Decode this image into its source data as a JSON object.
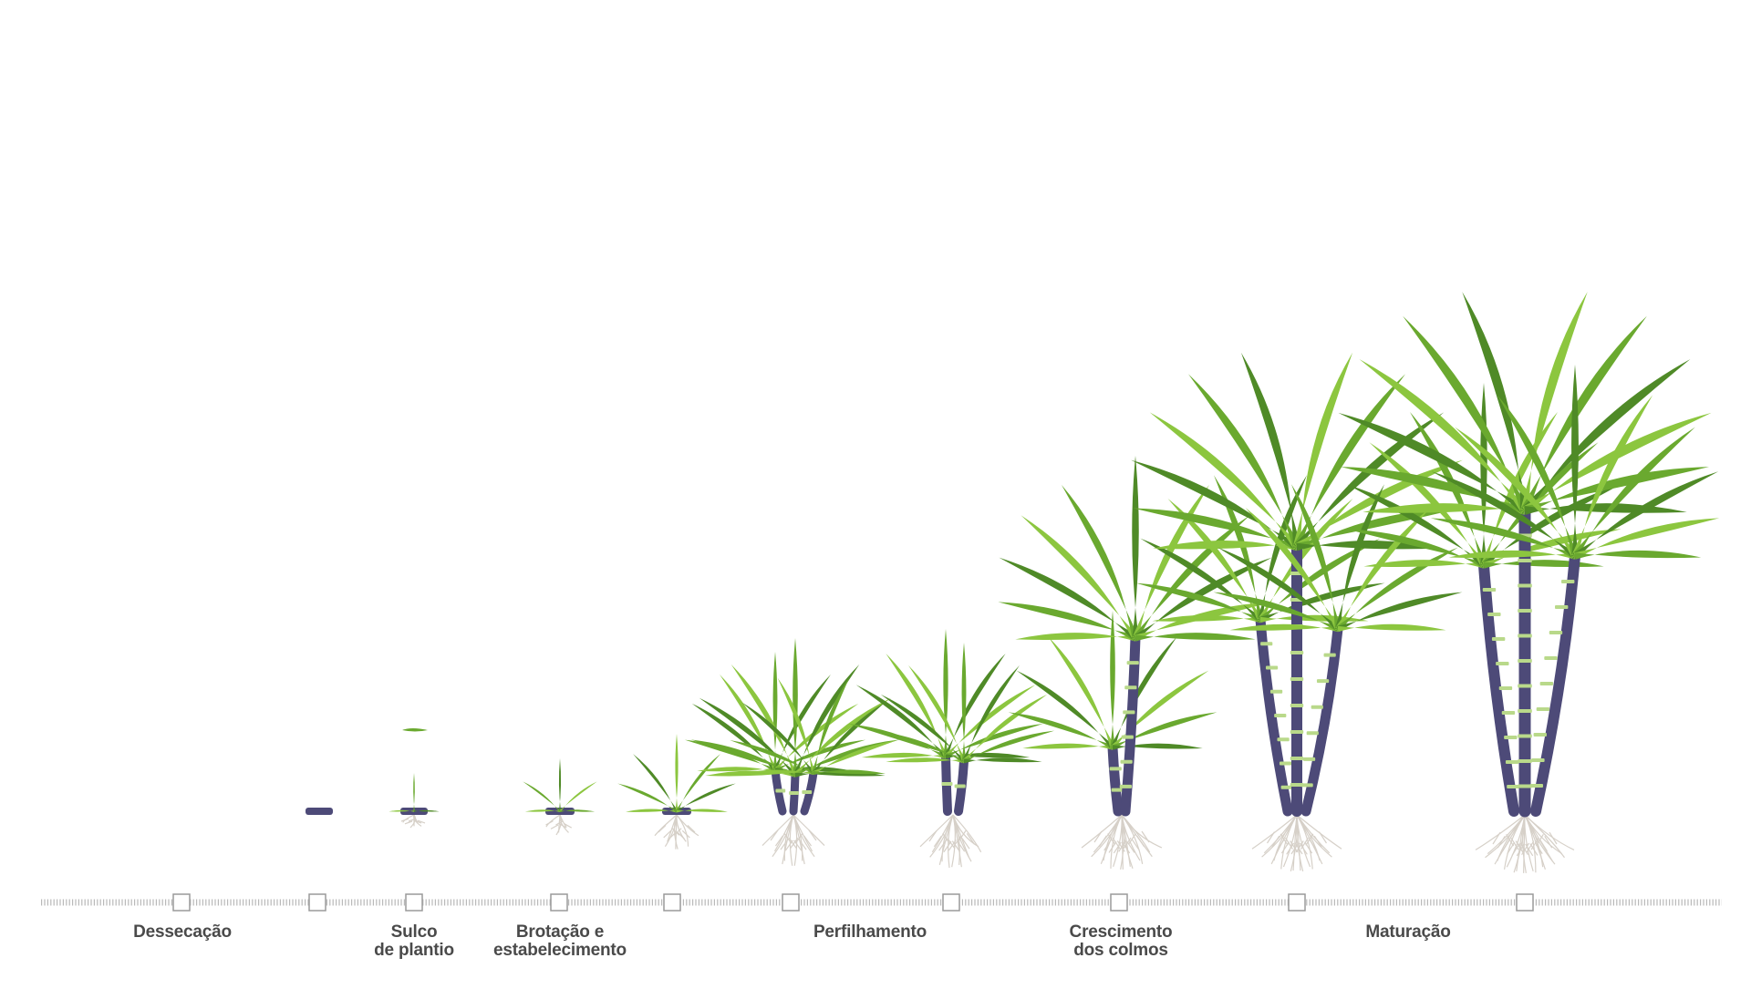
{
  "stages": [
    {
      "id": "dessecacao",
      "lines": [
        "Dessecação"
      ]
    },
    {
      "id": "sulco",
      "lines": [
        "Sulco",
        "de plantio"
      ]
    },
    {
      "id": "brotacao",
      "lines": [
        "Brotação e",
        "estabelecimento"
      ]
    },
    {
      "id": "perfilhamento",
      "lines": [
        "Perfilhamento"
      ]
    },
    {
      "id": "crescimento",
      "lines": [
        "Crescimento",
        "dos colmos"
      ]
    },
    {
      "id": "maturacao",
      "lines": [
        "Maturação"
      ]
    }
  ],
  "colors": {
    "timeline": "#b9b9b9",
    "marker_border": "#9a9a9a",
    "label": "#4a4a4a",
    "leaf_light": "#8cc63f",
    "leaf_mid": "#6aa92f",
    "leaf_dark": "#4f8a27",
    "stalk": "#4d4a78",
    "stalk_dark": "#3a3760",
    "node": "#b9d98a",
    "root": "#d6d0c8"
  },
  "icons": [
    "sugarcane-sett-icon",
    "sugarcane-plant-icon",
    "roots-icon"
  ]
}
